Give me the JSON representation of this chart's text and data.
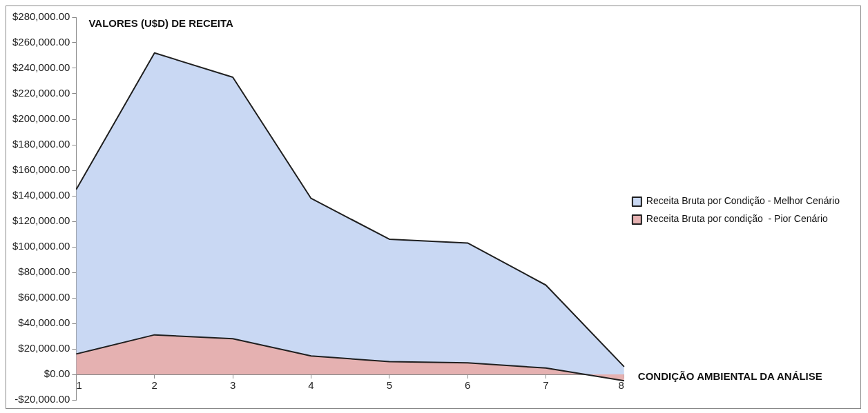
{
  "chart_data": {
    "type": "area",
    "ylabel": "VALORES (U$D) DE RECEITA",
    "xlabel": "CONDIÇÃO AMBIENTAL DA ANÁLISE",
    "categories": [
      "1",
      "2",
      "3",
      "4",
      "5",
      "6",
      "7",
      "8"
    ],
    "series": [
      {
        "name": "Receita Bruta por Condição - Melhor Cenário",
        "color": "#c9d8f3",
        "values": [
          145000,
          252000,
          233000,
          138000,
          106000,
          103000,
          70000,
          6000
        ]
      },
      {
        "name": "Receita Bruta por condição  - Pior Cenário",
        "color": "#e5b1b1",
        "values": [
          16000,
          31000,
          28000,
          14500,
          10000,
          9000,
          5000,
          -5000
        ]
      }
    ],
    "ylim": [
      -20000,
      280000
    ],
    "yticks": [
      {
        "value": -20000,
        "label": "-$20,000.00"
      },
      {
        "value": 0,
        "label": "$0.00"
      },
      {
        "value": 20000,
        "label": "$20,000.00"
      },
      {
        "value": 40000,
        "label": "$40,000.00"
      },
      {
        "value": 60000,
        "label": "$60,000.00"
      },
      {
        "value": 80000,
        "label": "$80,000.00"
      },
      {
        "value": 100000,
        "label": "$100,000.00"
      },
      {
        "value": 120000,
        "label": "$120,000.00"
      },
      {
        "value": 140000,
        "label": "$140,000.00"
      },
      {
        "value": 160000,
        "label": "$160,000.00"
      },
      {
        "value": 180000,
        "label": "$180,000.00"
      },
      {
        "value": 200000,
        "label": "$200,000.00"
      },
      {
        "value": 220000,
        "label": "$220,000.00"
      },
      {
        "value": 240000,
        "label": "$240,000.00"
      },
      {
        "value": 260000,
        "label": "$260,000.00"
      },
      {
        "value": 280000,
        "label": "$280,000.00"
      }
    ],
    "legend": "right",
    "grid": false,
    "marker": "none"
  }
}
